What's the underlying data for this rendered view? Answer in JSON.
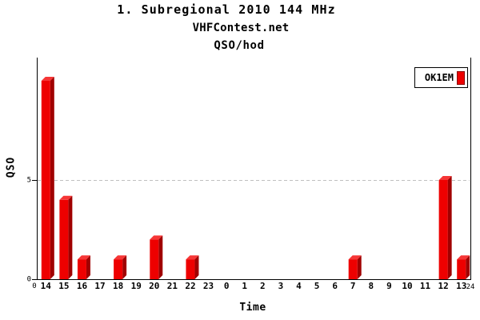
{
  "title": "1. Subregional 2010 144 MHz",
  "subtitle": "VHFContest.net",
  "chart_type_label": "QSO/hod",
  "legend": {
    "label": "OK1EM"
  },
  "axes": {
    "y_label": "QSO",
    "x_label": "Time",
    "y_ticks": [
      {
        "value": 0,
        "label": "0"
      },
      {
        "value": 5,
        "label": "5"
      }
    ],
    "x_start_label": "0",
    "x_end_label": "24"
  },
  "colors": {
    "background": "#ffffff",
    "bar_front": "#ee0000",
    "bar_top": "#f63636",
    "bar_side": "#a00000",
    "axis": "#000000",
    "gridline": "#c0c0c0"
  },
  "chart_data": {
    "type": "bar",
    "title": "1. Subregional 2010 144 MHz",
    "subtitle": "VHFContest.net",
    "panel_label": "QSO/hod",
    "xlabel": "Time",
    "ylabel": "QSO",
    "categories": [
      "14",
      "15",
      "16",
      "17",
      "18",
      "19",
      "20",
      "21",
      "22",
      "23",
      "0",
      "1",
      "2",
      "3",
      "4",
      "5",
      "6",
      "7",
      "8",
      "9",
      "10",
      "11",
      "12",
      "13"
    ],
    "series": [
      {
        "name": "OK1EM",
        "values": [
          10,
          4,
          1,
          0,
          1,
          0,
          2,
          0,
          1,
          0,
          0,
          0,
          0,
          0,
          0,
          0,
          0,
          1,
          0,
          0,
          0,
          0,
          5,
          1
        ]
      }
    ],
    "ylim": [
      0,
      11
    ],
    "y_tick_values": [
      0,
      5
    ],
    "gridlines_y": [
      5
    ],
    "grid_style": "dashed",
    "x_edge_labels": [
      "0",
      "24"
    ],
    "legend_position": "top-right",
    "bar_style": "3d"
  }
}
